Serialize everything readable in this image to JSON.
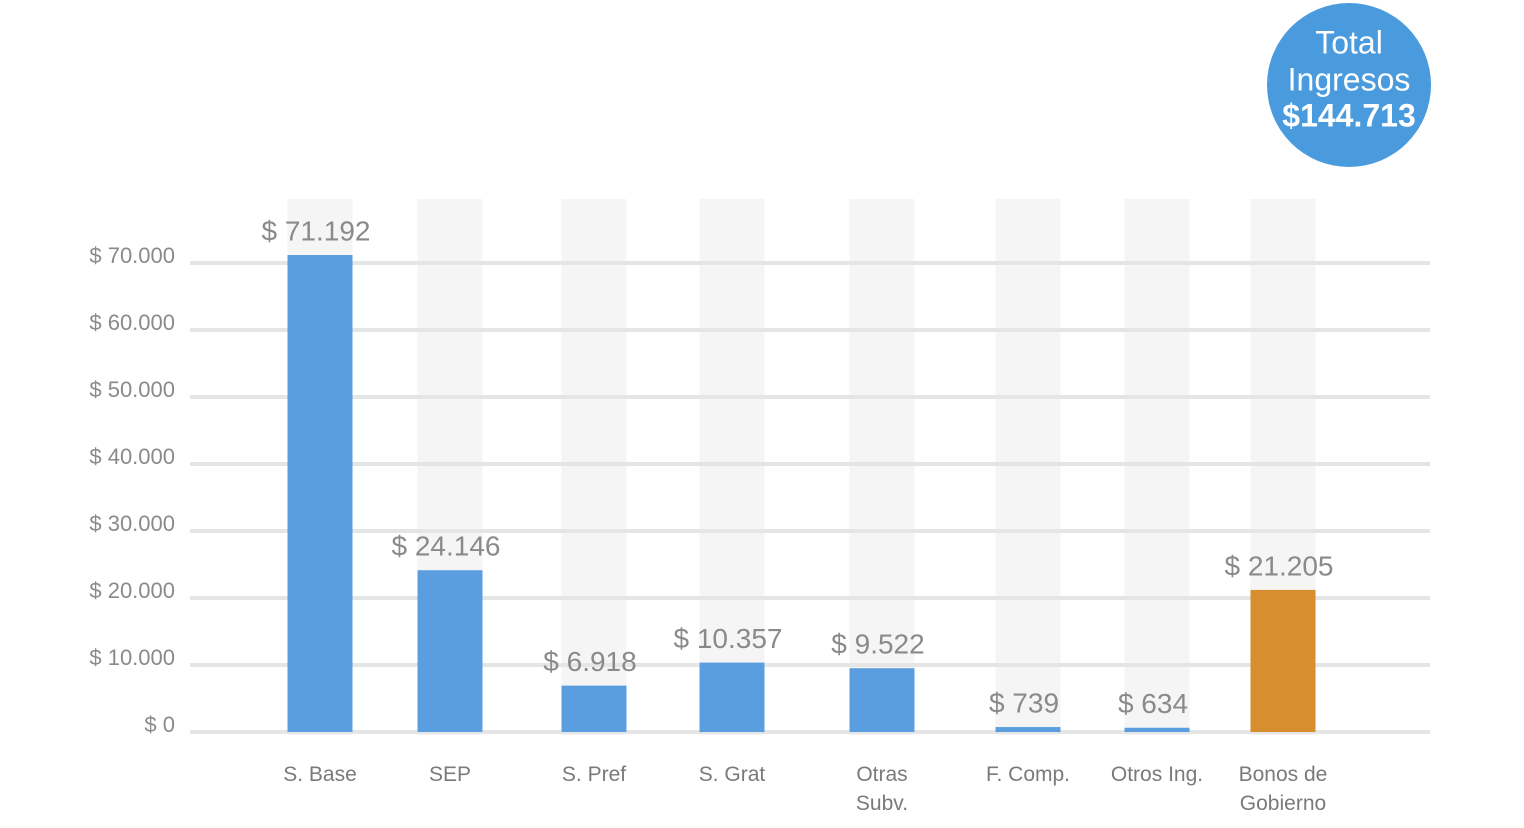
{
  "chart_data": {
    "type": "bar",
    "annotation": [
      "Total",
      "Ingresos",
      "$144.713"
    ],
    "categories": [
      "S. Base",
      "SEP",
      "S. Pref",
      "S. Grat",
      "Otras Subv.",
      "F. Comp.",
      "Otros Ing.",
      "Bonos de Gobierno"
    ],
    "values": [
      71192,
      24146,
      6918,
      10357,
      9522,
      739,
      634,
      21205
    ],
    "value_labels": [
      "$ 71.192",
      "$ 24.146",
      "$ 6.918",
      "$ 10.357",
      "$ 9.522",
      "$ 739",
      "$ 634",
      "$ 21.205"
    ],
    "colors": [
      "#5a9ee0",
      "#5a9ee0",
      "#5a9ee0",
      "#5a9ee0",
      "#5a9ee0",
      "#5a9ee0",
      "#5a9ee0",
      "#d68e2e"
    ],
    "ylim": [
      0,
      80000
    ],
    "yticks": [
      {
        "value": 0,
        "label": "$ 0"
      },
      {
        "value": 10000,
        "label": "$ 10.000"
      },
      {
        "value": 20000,
        "label": "$ 20.000"
      },
      {
        "value": 30000,
        "label": "$ 30.000"
      },
      {
        "value": 40000,
        "label": "$ 40.000"
      },
      {
        "value": 50000,
        "label": "$ 50.000"
      },
      {
        "value": 60000,
        "label": "$ 60.000"
      },
      {
        "value": 70000,
        "label": "$ 70.000"
      }
    ],
    "grid": true
  }
}
